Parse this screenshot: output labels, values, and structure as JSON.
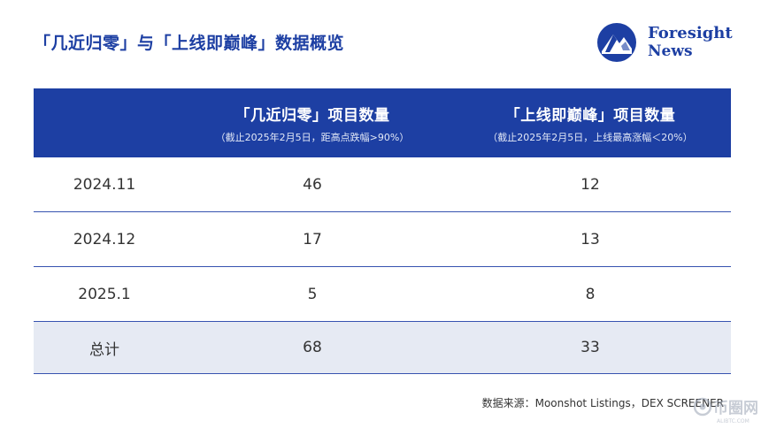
{
  "title": "「几近归零」与「上线即巅峰」数据概览",
  "logo": {
    "line1": "Foresight",
    "line2": "News",
    "color": "#1d3fa3"
  },
  "table": {
    "header": [
      {
        "label": "",
        "note": ""
      },
      {
        "label": "「几近归零」项目数量",
        "note": "（截止2025年2月5日，距高点跌幅>90%）"
      },
      {
        "label": "「上线即巅峰」项目数量",
        "note": "（截止2025年2月5日，上线最高涨幅＜20%）"
      }
    ],
    "rows": [
      [
        "2024.11",
        "46",
        "12"
      ],
      [
        "2024.12",
        "17",
        "13"
      ],
      [
        "2025.1",
        "5",
        "8"
      ]
    ],
    "total": [
      "总计",
      "68",
      "33"
    ]
  },
  "chart_data": {
    "type": "table",
    "columns": [
      "",
      "「几近归零」项目数量",
      "「上线即巅峰」项目数量"
    ],
    "categories": [
      "2024.11",
      "2024.12",
      "2025.1",
      "总计"
    ],
    "series": [
      {
        "name": "「几近归零」项目数量",
        "values": [
          46,
          17,
          5,
          68
        ]
      },
      {
        "name": "「上线即巅峰」项目数量",
        "values": [
          12,
          13,
          8,
          33
        ]
      }
    ],
    "title": "「几近归零」与「上线即巅峰」数据概览"
  },
  "source": "数据来源：Moonshot Listings，DEX SCREENER",
  "watermark": {
    "text": "币圈网",
    "sub": "ALIBTC.COM"
  },
  "colors": {
    "header_bg": "#1d3fa3",
    "total_bg": "#e6eaf3",
    "divider": "#3753b0"
  }
}
